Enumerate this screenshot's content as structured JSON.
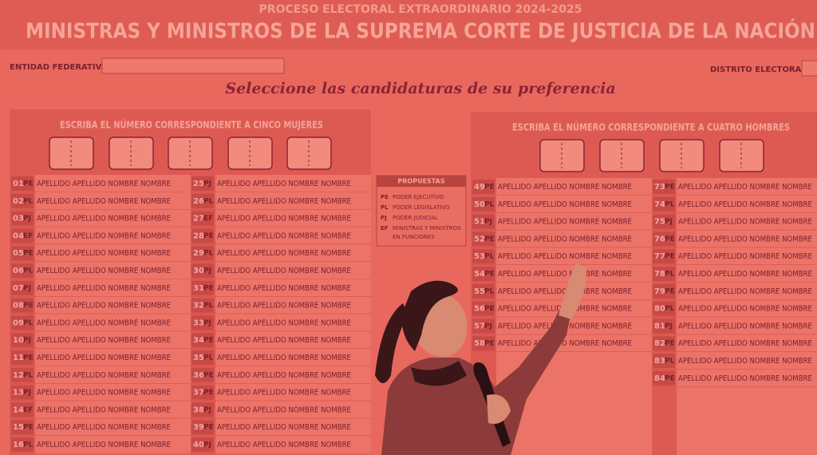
{
  "header": {
    "process": "PROCESO ELECTORAL EXTRAORDINARIO 2024-2025",
    "title": "MINISTRAS Y MINISTROS DE LA SUPREMA CORTE DE JUSTICIA DE LA NACIÓN",
    "entidad": "ENTIDAD FEDERATIVA",
    "distrito": "DISTRITO ELECTORAL",
    "instruction": "Seleccione las candidaturas de su preferencia"
  },
  "women": {
    "heading": "ESCRIBA EL NÚMERO CORRESPONDIENTE A CINCO MUJERES",
    "columns": [
      [
        [
          "01",
          "PE",
          "APELLIDO APELLIDO NOMBRE NOMBRE"
        ],
        [
          "02",
          "PL",
          "APELLIDO APELLIDO NOMBRE NOMBRE"
        ],
        [
          "03",
          "PJ",
          "APELLIDO APELLIDO NOMBRE NOMBRE"
        ],
        [
          "04",
          "EF",
          "APELLIDO APELLIDO NOMBRE NOMBRE"
        ],
        [
          "05",
          "PE",
          "APELLIDO APELLIDO NOMBRE NOMBRE"
        ],
        [
          "06",
          "PL",
          "APELLIDO APELLIDO NOMBRE NOMBRE"
        ],
        [
          "07",
          "PJ",
          "APELLIDO APELLIDO NOMBRE NOMBRE"
        ],
        [
          "08",
          "PE",
          "APELLIDO APELLIDO NOMBRE NOMBRE"
        ],
        [
          "09",
          "PL",
          "APELLIDO APELLIDO NOMBRE NOMBRE"
        ],
        [
          "10",
          "PJ",
          "APELLIDO APELLIDO NOMBRE NOMBRE"
        ],
        [
          "11",
          "PE",
          "APELLIDO APELLIDO NOMBRE NOMBRE"
        ],
        [
          "12",
          "PL",
          "APELLIDO APELLIDO NOMBRE NOMBRE"
        ],
        [
          "13",
          "PJ",
          "APELLIDO APELLIDO NOMBRE NOMBRE"
        ],
        [
          "14",
          "EF",
          "APELLIDO APELLIDO NOMBRE NOMBRE"
        ],
        [
          "15",
          "PE",
          "APELLIDO APELLIDO NOMBRE NOMBRE"
        ],
        [
          "16",
          "PL",
          "APELLIDO APELLIDO NOMBRE NOMBRE"
        ]
      ],
      [
        [
          "25",
          "PJ",
          "APELLIDO APELLIDO NOMBRE NOMBRE"
        ],
        [
          "26",
          "PL",
          "APELLIDO APELLIDO NOMBRE NOMBRE"
        ],
        [
          "27",
          "EF",
          "APELLIDO APELLIDO NOMBRE NOMBRE"
        ],
        [
          "28",
          "PE",
          "APELLIDO APELLIDO NOMBRE NOMBRE"
        ],
        [
          "29",
          "PL",
          "APELLIDO APELLIDO NOMBRE NOMBRE"
        ],
        [
          "30",
          "PJ",
          "APELLIDO APELLIDO NOMBRE NOMBRE"
        ],
        [
          "31",
          "PE",
          "APELLIDO APELLIDO NOMBRE NOMBRE"
        ],
        [
          "32",
          "PL",
          "APELLIDO APELLIDO NOMBRE NOMBRE"
        ],
        [
          "33",
          "PJ",
          "APELLIDO APELLIDO NOMBRE NOMBRE"
        ],
        [
          "34",
          "PE",
          "APELLIDO APELLIDO NOMBRE NOMBRE"
        ],
        [
          "35",
          "PL",
          "APELLIDO APELLIDO NOMBRE NOMBRE"
        ],
        [
          "36",
          "PE",
          "APELLIDO APELLIDO NOMBRE NOMBRE"
        ],
        [
          "37",
          "PE",
          "APELLIDO APELLIDO NOMBRE NOMBRE"
        ],
        [
          "38",
          "PJ",
          "APELLIDO APELLIDO NOMBRE NOMBRE"
        ],
        [
          "39",
          "PE",
          "APELLIDO APELLIDO NOMBRE NOMBRE"
        ],
        [
          "40",
          "PJ",
          "APELLIDO APELLIDO NOMBRE NOMBRE"
        ]
      ]
    ]
  },
  "men": {
    "heading": "ESCRIBA EL NÚMERO CORRESPONDIENTE A CUATRO HOMBRES",
    "columns": [
      [
        [
          "49",
          "PE",
          "APELLIDO APELLIDO NOMBRE NOMBRE"
        ],
        [
          "50",
          "PL",
          "APELLIDO APELLIDO NOMBRE NOMBRE"
        ],
        [
          "51",
          "PJ",
          "APELLIDO APELLIDO NOMBRE NOMBRE"
        ],
        [
          "52",
          "PE",
          "APELLIDO APELLIDO NOMBRE NOMBRE"
        ],
        [
          "53",
          "PL",
          "APELLIDO APELLIDO NOMBRE NOMBRE"
        ],
        [
          "54",
          "PE",
          "APELLIDO APELLIDO NOMBRE NOMBRE"
        ],
        [
          "55",
          "PL",
          "APELLIDO APELLIDO NOMBRE NOMBRE"
        ],
        [
          "56",
          "PE",
          "APELLIDO APELLIDO NOMBRE NOMBRE"
        ],
        [
          "57",
          "PJ",
          "APELLIDO APELLIDO NOMBRE NOMBRE"
        ],
        [
          "58",
          "PE",
          "APELLIDO APELLIDO NOMBRE NOMBRE"
        ]
      ],
      [
        [
          "73",
          "PE",
          "APELLIDO APELLIDO NOMBRE NOMBRE"
        ],
        [
          "74",
          "PL",
          "APELLIDO APELLIDO NOMBRE NOMBRE"
        ],
        [
          "75",
          "PJ",
          "APELLIDO APELLIDO NOMBRE NOMBRE"
        ],
        [
          "76",
          "PE",
          "APELLIDO APELLIDO NOMBRE NOMBRE"
        ],
        [
          "77",
          "PE",
          "APELLIDO APELLIDO NOMBRE NOMBRE"
        ],
        [
          "78",
          "PL",
          "APELLIDO APELLIDO NOMBRE NOMBRE"
        ],
        [
          "79",
          "PE",
          "APELLIDO APELLIDO NOMBRE NOMBRE"
        ],
        [
          "80",
          "PL",
          "APELLIDO APELLIDO NOMBRE NOMBRE"
        ],
        [
          "81",
          "PJ",
          "APELLIDO APELLIDO NOMBRE NOMBRE"
        ],
        [
          "82",
          "PE",
          "APELLIDO APELLIDO NOMBRE NOMBRE"
        ],
        [
          "83",
          "PL",
          "APELLIDO APELLIDO NOMBRE NOMBRE"
        ],
        [
          "84",
          "PE",
          "APELLIDO APELLIDO NOMBRE NOMBRE"
        ]
      ]
    ]
  },
  "legend": {
    "title": "PROPUESTAS",
    "items": [
      [
        "PE",
        "PODER EJECUTIVO"
      ],
      [
        "PL",
        "PODER LEGISLATIVO"
      ],
      [
        "PJ",
        "PODER JUDICIAL"
      ],
      [
        "EF",
        "MINISTRAS Y MINISTROS",
        "EN FUNCIONES"
      ]
    ]
  }
}
